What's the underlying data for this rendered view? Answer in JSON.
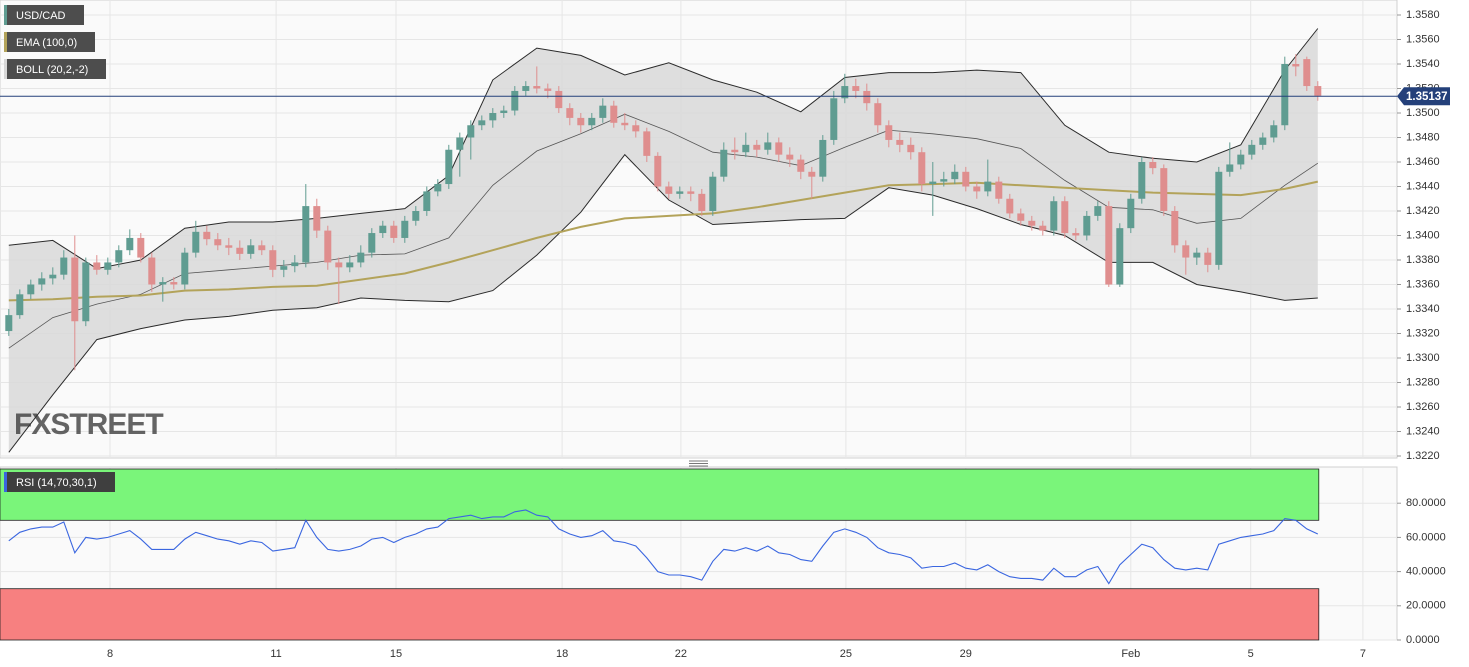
{
  "chart_data": [
    {
      "type": "candlestick",
      "symbol": "USD/CAD",
      "watermark": "FXSTREET",
      "up_color": "#5f9c91",
      "down_color": "#df8e8e",
      "grid": true,
      "xlim": [
        -0.8,
        126.2
      ],
      "xticks": [
        {
          "value": 9.2,
          "label": "8"
        },
        {
          "value": 24.3,
          "label": "11"
        },
        {
          "value": 35.2,
          "label": "15"
        },
        {
          "value": 50.3,
          "label": "18"
        },
        {
          "value": 61.1,
          "label": "22"
        },
        {
          "value": 76.1,
          "label": "25"
        },
        {
          "value": 87,
          "label": "29"
        },
        {
          "value": 102,
          "label": "Feb"
        },
        {
          "value": 112.9,
          "label": "5"
        },
        {
          "value": 123.1,
          "label": "7"
        }
      ],
      "ylim": [
        1.322,
        1.358
      ],
      "yticks": [
        {
          "value": 1.322,
          "label": "1.3220"
        },
        {
          "value": 1.324,
          "label": "1.3240"
        },
        {
          "value": 1.326,
          "label": "1.3260"
        },
        {
          "value": 1.328,
          "label": "1.3280"
        },
        {
          "value": 1.33,
          "label": "1.3300"
        },
        {
          "value": 1.332,
          "label": "1.3320"
        },
        {
          "value": 1.334,
          "label": "1.3340"
        },
        {
          "value": 1.336,
          "label": "1.3360"
        },
        {
          "value": 1.338,
          "label": "1.3380"
        },
        {
          "value": 1.34,
          "label": "1.3400"
        },
        {
          "value": 1.342,
          "label": "1.3420"
        },
        {
          "value": 1.344,
          "label": "1.3440"
        },
        {
          "value": 1.346,
          "label": "1.3460"
        },
        {
          "value": 1.348,
          "label": "1.3480"
        },
        {
          "value": 1.35,
          "label": "1.3500"
        },
        {
          "value": 1.352,
          "label": "1.3520"
        },
        {
          "value": 1.354,
          "label": "1.3540"
        },
        {
          "value": 1.356,
          "label": "1.3560"
        },
        {
          "value": 1.358,
          "label": "1.3580"
        }
      ],
      "last_price": 1.35137,
      "last_price_color": "#24407a",
      "ohlc": [
        [
          1.3322,
          1.334,
          1.3318,
          1.3335
        ],
        [
          1.3335,
          1.3356,
          1.3332,
          1.3352
        ],
        [
          1.3352,
          1.3364,
          1.3348,
          1.336
        ],
        [
          1.336,
          1.337,
          1.3355,
          1.3365
        ],
        [
          1.3365,
          1.3374,
          1.336,
          1.3368
        ],
        [
          1.3368,
          1.3388,
          1.3364,
          1.3382
        ],
        [
          1.3382,
          1.34,
          1.329,
          1.333
        ],
        [
          1.333,
          1.3382,
          1.3326,
          1.3378
        ],
        [
          1.3378,
          1.3384,
          1.3368,
          1.3372
        ],
        [
          1.3372,
          1.3382,
          1.3368,
          1.3378
        ],
        [
          1.3378,
          1.3392,
          1.3374,
          1.3388
        ],
        [
          1.3388,
          1.3405,
          1.3384,
          1.3398
        ],
        [
          1.3398,
          1.3402,
          1.3378,
          1.3382
        ],
        [
          1.3382,
          1.3386,
          1.3354,
          1.336
        ],
        [
          1.336,
          1.3366,
          1.3346,
          1.3362
        ],
        [
          1.3362,
          1.3366,
          1.3356,
          1.336
        ],
        [
          1.336,
          1.339,
          1.3356,
          1.3386
        ],
        [
          1.3386,
          1.3412,
          1.3382,
          1.3403
        ],
        [
          1.3403,
          1.3408,
          1.3392,
          1.3397
        ],
        [
          1.3397,
          1.3402,
          1.3388,
          1.3392
        ],
        [
          1.3392,
          1.3398,
          1.3384,
          1.339
        ],
        [
          1.339,
          1.3396,
          1.338,
          1.3385
        ],
        [
          1.3385,
          1.3397,
          1.3381,
          1.3392
        ],
        [
          1.3392,
          1.3396,
          1.3384,
          1.3388
        ],
        [
          1.3388,
          1.3392,
          1.3366,
          1.3372
        ],
        [
          1.3372,
          1.338,
          1.3366,
          1.3375
        ],
        [
          1.3375,
          1.3384,
          1.337,
          1.3378
        ],
        [
          1.3378,
          1.3442,
          1.3374,
          1.3424
        ],
        [
          1.3424,
          1.343,
          1.3398,
          1.3404
        ],
        [
          1.3404,
          1.3408,
          1.3372,
          1.3378
        ],
        [
          1.3378,
          1.3382,
          1.3344,
          1.3374
        ],
        [
          1.3374,
          1.3384,
          1.337,
          1.3378
        ],
        [
          1.3378,
          1.3392,
          1.3374,
          1.3386
        ],
        [
          1.3386,
          1.3406,
          1.3382,
          1.3402
        ],
        [
          1.3402,
          1.3412,
          1.3398,
          1.3408
        ],
        [
          1.3408,
          1.3412,
          1.3394,
          1.3398
        ],
        [
          1.3398,
          1.3416,
          1.3394,
          1.3412
        ],
        [
          1.3412,
          1.3424,
          1.3408,
          1.342
        ],
        [
          1.342,
          1.344,
          1.3416,
          1.3436
        ],
        [
          1.3436,
          1.3446,
          1.3432,
          1.3442
        ],
        [
          1.3442,
          1.3474,
          1.3438,
          1.347
        ],
        [
          1.347,
          1.3484,
          1.3448,
          1.348
        ],
        [
          1.348,
          1.3494,
          1.3462,
          1.349
        ],
        [
          1.349,
          1.3498,
          1.3486,
          1.3494
        ],
        [
          1.3494,
          1.3504,
          1.3488,
          1.35
        ],
        [
          1.35,
          1.3506,
          1.3496,
          1.3502
        ],
        [
          1.3502,
          1.3522,
          1.3498,
          1.3518
        ],
        [
          1.3518,
          1.3526,
          1.3514,
          1.3522
        ],
        [
          1.3522,
          1.3538,
          1.3516,
          1.352
        ],
        [
          1.352,
          1.3524,
          1.3512,
          1.3518
        ],
        [
          1.3518,
          1.3522,
          1.35,
          1.3504
        ],
        [
          1.3504,
          1.3508,
          1.349,
          1.3496
        ],
        [
          1.3496,
          1.35,
          1.3484,
          1.349
        ],
        [
          1.349,
          1.35,
          1.3486,
          1.3496
        ],
        [
          1.3496,
          1.3512,
          1.3492,
          1.3506
        ],
        [
          1.3506,
          1.351,
          1.3488,
          1.3492
        ],
        [
          1.3492,
          1.35,
          1.3486,
          1.349
        ],
        [
          1.349,
          1.3494,
          1.348,
          1.3485
        ],
        [
          1.3485,
          1.3488,
          1.346,
          1.3465
        ],
        [
          1.3465,
          1.3468,
          1.3436,
          1.344
        ],
        [
          1.344,
          1.3444,
          1.343,
          1.3434
        ],
        [
          1.3434,
          1.344,
          1.343,
          1.3436
        ],
        [
          1.3436,
          1.344,
          1.3428,
          1.3434
        ],
        [
          1.3434,
          1.3438,
          1.3416,
          1.342
        ],
        [
          1.342,
          1.3452,
          1.3416,
          1.3448
        ],
        [
          1.3448,
          1.3476,
          1.3444,
          1.347
        ],
        [
          1.347,
          1.348,
          1.3462,
          1.3468
        ],
        [
          1.3468,
          1.3484,
          1.3464,
          1.3474
        ],
        [
          1.3474,
          1.3478,
          1.3464,
          1.347
        ],
        [
          1.347,
          1.3484,
          1.3466,
          1.3476
        ],
        [
          1.3476,
          1.348,
          1.346,
          1.3466
        ],
        [
          1.3466,
          1.3472,
          1.3456,
          1.3462
        ],
        [
          1.3462,
          1.3466,
          1.3446,
          1.3452
        ],
        [
          1.3452,
          1.3456,
          1.343,
          1.3448
        ],
        [
          1.3448,
          1.3482,
          1.3444,
          1.3478
        ],
        [
          1.3478,
          1.3518,
          1.3474,
          1.3512
        ],
        [
          1.3512,
          1.3532,
          1.3508,
          1.3522
        ],
        [
          1.3522,
          1.3528,
          1.3512,
          1.3518
        ],
        [
          1.3518,
          1.3524,
          1.3502,
          1.3508
        ],
        [
          1.3508,
          1.3512,
          1.3484,
          1.349
        ],
        [
          1.349,
          1.3494,
          1.3472,
          1.3478
        ],
        [
          1.3478,
          1.3484,
          1.3468,
          1.3474
        ],
        [
          1.3474,
          1.348,
          1.3462,
          1.3468
        ],
        [
          1.3468,
          1.3472,
          1.3436,
          1.3442
        ],
        [
          1.3442,
          1.346,
          1.3416,
          1.3444
        ],
        [
          1.3444,
          1.3452,
          1.344,
          1.3446
        ],
        [
          1.3446,
          1.3458,
          1.3442,
          1.3452
        ],
        [
          1.3452,
          1.3456,
          1.3436,
          1.344
        ],
        [
          1.344,
          1.3444,
          1.343,
          1.3436
        ],
        [
          1.3436,
          1.3462,
          1.3432,
          1.3444
        ],
        [
          1.3444,
          1.3448,
          1.3426,
          1.343
        ],
        [
          1.343,
          1.3434,
          1.3414,
          1.3418
        ],
        [
          1.3418,
          1.3422,
          1.3408,
          1.3412
        ],
        [
          1.3412,
          1.3416,
          1.3404,
          1.3408
        ],
        [
          1.3408,
          1.3412,
          1.34,
          1.3404
        ],
        [
          1.3404,
          1.3432,
          1.34,
          1.3428
        ],
        [
          1.3428,
          1.3432,
          1.3398,
          1.3402
        ],
        [
          1.3402,
          1.3406,
          1.3396,
          1.34
        ],
        [
          1.34,
          1.342,
          1.3396,
          1.3416
        ],
        [
          1.3416,
          1.3428,
          1.3412,
          1.3424
        ],
        [
          1.3424,
          1.3428,
          1.3358,
          1.336
        ],
        [
          1.336,
          1.341,
          1.3358,
          1.3406
        ],
        [
          1.3406,
          1.3434,
          1.3402,
          1.343
        ],
        [
          1.343,
          1.3464,
          1.3426,
          1.346
        ],
        [
          1.346,
          1.3464,
          1.345,
          1.3455
        ],
        [
          1.3455,
          1.3458,
          1.3416,
          1.342
        ],
        [
          1.342,
          1.3424,
          1.3386,
          1.3392
        ],
        [
          1.3392,
          1.3396,
          1.3368,
          1.3382
        ],
        [
          1.3382,
          1.339,
          1.3376,
          1.3386
        ],
        [
          1.3386,
          1.339,
          1.337,
          1.3376
        ],
        [
          1.3376,
          1.3456,
          1.3372,
          1.3452
        ],
        [
          1.3452,
          1.3476,
          1.3448,
          1.3458
        ],
        [
          1.3458,
          1.347,
          1.3454,
          1.3466
        ],
        [
          1.3466,
          1.3478,
          1.3462,
          1.3474
        ],
        [
          1.3474,
          1.3484,
          1.347,
          1.348
        ],
        [
          1.348,
          1.3494,
          1.3476,
          1.349
        ],
        [
          1.349,
          1.3546,
          1.3486,
          1.354
        ],
        [
          1.354,
          1.3548,
          1.353,
          1.3538
        ],
        [
          1.3544,
          1.3546,
          1.3518,
          1.3522
        ],
        [
          1.3522,
          1.3526,
          1.351,
          1.3514
        ]
      ],
      "overlay_x": [
        0,
        4,
        8,
        12,
        16,
        20,
        24,
        28,
        32,
        36,
        40,
        44,
        48,
        52,
        56,
        60,
        64,
        68,
        72,
        76,
        80,
        84,
        88,
        92,
        96,
        100,
        104,
        108,
        112,
        116,
        119
      ],
      "bands": {
        "name": "BOLL (20,2,-2)",
        "color": "#2a2a2a",
        "middle_color": "#555",
        "fill": "#d8d8d8",
        "upper": [
          1.3392,
          1.3396,
          1.3373,
          1.338,
          1.3406,
          1.3411,
          1.3411,
          1.3414,
          1.3418,
          1.3422,
          1.3449,
          1.3527,
          1.3553,
          1.3547,
          1.3531,
          1.3541,
          1.3527,
          1.3517,
          1.3501,
          1.3529,
          1.3533,
          1.3533,
          1.3535,
          1.3533,
          1.349,
          1.3468,
          1.3463,
          1.346,
          1.3474,
          1.3535,
          1.3569
        ],
        "middle": [
          1.3308,
          1.3333,
          1.3344,
          1.3352,
          1.3369,
          1.3372,
          1.3375,
          1.3378,
          1.3384,
          1.3385,
          1.3398,
          1.3441,
          1.3469,
          1.3483,
          1.3499,
          1.3485,
          1.3468,
          1.3464,
          1.3457,
          1.3472,
          1.3486,
          1.3483,
          1.3479,
          1.3471,
          1.3445,
          1.3423,
          1.3421,
          1.341,
          1.3414,
          1.3441,
          1.3459
        ],
        "lower": [
          1.3223,
          1.327,
          1.3315,
          1.3324,
          1.3331,
          1.3334,
          1.3339,
          1.3341,
          1.3349,
          1.3347,
          1.3346,
          1.3355,
          1.3384,
          1.3419,
          1.3466,
          1.3429,
          1.3409,
          1.3411,
          1.3413,
          1.3414,
          1.3439,
          1.3433,
          1.3422,
          1.3409,
          1.34,
          1.3378,
          1.3378,
          1.336,
          1.3354,
          1.3347,
          1.3349
        ]
      },
      "ema": {
        "name": "EMA (100,0)",
        "color": "#b3a35a",
        "values": [
          1.3347,
          1.3348,
          1.335,
          1.3351,
          1.3355,
          1.3356,
          1.3358,
          1.3359,
          1.3364,
          1.3369,
          1.3378,
          1.3388,
          1.3398,
          1.3407,
          1.3414,
          1.3416,
          1.3418,
          1.3423,
          1.3429,
          1.3435,
          1.3441,
          1.3442,
          1.3443,
          1.3441,
          1.3439,
          1.3437,
          1.3435,
          1.3434,
          1.3433,
          1.3438,
          1.3444
        ]
      }
    },
    {
      "type": "line",
      "title": "RSI (14,70,30,1)",
      "color": "#3a66e0",
      "ylim": [
        0,
        100
      ],
      "yticks": [
        {
          "value": 0,
          "label": "0.0000"
        },
        {
          "value": 20,
          "label": "20.0000"
        },
        {
          "value": 40,
          "label": "40.0000"
        },
        {
          "value": 60,
          "label": "60.0000"
        },
        {
          "value": 80,
          "label": "80.0000"
        }
      ],
      "overbought": 70,
      "oversold": 30,
      "overbought_color": "#7af57a",
      "oversold_color": "#f78080",
      "values": [
        58,
        63,
        65,
        66,
        66,
        69,
        51,
        60,
        59,
        60,
        62,
        64,
        59,
        53,
        53,
        53,
        59,
        63,
        61,
        59,
        58,
        56,
        58,
        57,
        52,
        53,
        54,
        70,
        60,
        53,
        52,
        53,
        55,
        59,
        60,
        57,
        60,
        62,
        65,
        66,
        71,
        72,
        73,
        71,
        72,
        72,
        75,
        76,
        73,
        72,
        65,
        62,
        60,
        61,
        64,
        58,
        57,
        55,
        48,
        40,
        38,
        38,
        37,
        35,
        46,
        53,
        52,
        54,
        52,
        55,
        51,
        50,
        47,
        46,
        55,
        63,
        65,
        63,
        60,
        54,
        51,
        50,
        48,
        42,
        43,
        43,
        45,
        42,
        41,
        44,
        40,
        37,
        36,
        36,
        35,
        42,
        37,
        37,
        41,
        43,
        33,
        44,
        50,
        56,
        54,
        47,
        42,
        41,
        42,
        41,
        56,
        58,
        60,
        61,
        62,
        64,
        71,
        70,
        65,
        62
      ]
    }
  ]
}
